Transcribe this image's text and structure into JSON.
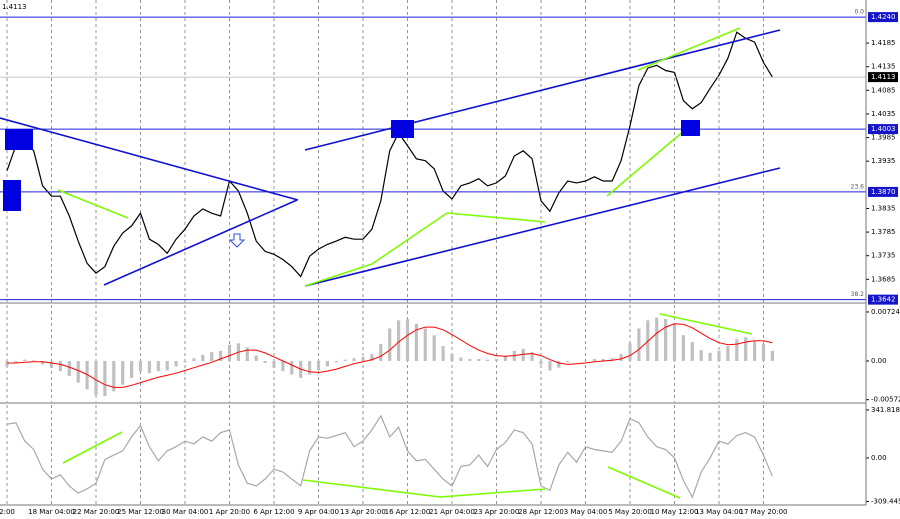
{
  "chart_data": [
    {
      "type": "line",
      "title": "1.4113",
      "color": "#000000",
      "grid": true,
      "categories": [
        "2:00",
        null,
        null,
        null,
        null,
        "18 Mar 04:00",
        null,
        null,
        null,
        null,
        "22 Mar 20:00",
        null,
        null,
        null,
        null,
        "25 Mar 12:00",
        null,
        null,
        null,
        null,
        "30 Mar 04:00",
        null,
        null,
        null,
        null,
        "1 Apr 20:00",
        null,
        null,
        null,
        null,
        "6 Apr 12:00",
        null,
        null,
        null,
        null,
        "9 Apr 04:00",
        null,
        null,
        null,
        null,
        "13 Apr 20:00",
        null,
        null,
        null,
        null,
        "16 Apr 12:00",
        null,
        null,
        null,
        null,
        "21 Apr 04:00",
        null,
        null,
        null,
        null,
        "23 Apr 20:00",
        null,
        null,
        null,
        null,
        "28 Apr 12:00",
        null,
        null,
        null,
        null,
        "3 May 04:00",
        null,
        null,
        null,
        null,
        "5 May 20:00",
        null,
        null,
        null,
        null,
        "10 May 12:00",
        null,
        null,
        null,
        null,
        "13 May 04:00",
        null,
        null,
        null,
        null,
        "17 May 20:00",
        null
      ],
      "values": [
        1.3915,
        1.3968,
        1.3978,
        1.3957,
        1.3883,
        1.3861,
        1.3861,
        1.3819,
        1.3766,
        1.3719,
        1.3698,
        1.3712,
        1.3755,
        1.3783,
        1.3798,
        1.3825,
        1.377,
        1.3759,
        1.374,
        1.377,
        1.3791,
        1.3819,
        1.3834,
        1.3825,
        1.3819,
        1.3893,
        1.3872,
        1.3825,
        1.3766,
        1.3744,
        1.3738,
        1.3727,
        1.3712,
        1.3691,
        1.3734,
        1.3749,
        1.3759,
        1.3766,
        1.3774,
        1.377,
        1.377,
        1.3791,
        1.3851,
        1.3957,
        1.3995,
        1.3968,
        1.394,
        1.3936,
        1.3919,
        1.3872,
        1.3855,
        1.3883,
        1.3889,
        1.3898,
        1.3883,
        1.3889,
        1.3904,
        1.3946,
        1.3957,
        1.394,
        1.3851,
        1.3829,
        1.3868,
        1.3893,
        1.3889,
        1.3893,
        1.3902,
        1.3893,
        1.3893,
        1.3936,
        1.401,
        1.4095,
        1.4132,
        1.4138,
        1.4127,
        1.4123,
        1.4063,
        1.4046,
        1.4059,
        1.4089,
        1.4117,
        1.4153,
        1.4208,
        1.4195,
        1.4187,
        1.4144,
        1.4113
      ],
      "ylim": [
        1.3637,
        1.42762
      ],
      "yticks": [
        1.4185,
        1.4135,
        1.4085,
        1.4035,
        1.3985,
        1.3935,
        1.3835,
        1.3785,
        1.3735,
        1.3685
      ],
      "hlines": [
        {
          "price": {
            "value": 1.424,
            "label": "1.4240"
          },
          "fib": "0.0"
        },
        {
          "price": 1.4003
        },
        {
          "price": {
            "value": 1.387,
            "label": "1.3870"
          },
          "fib": "23.6"
        },
        {
          "price": 1.3642,
          "fib": "38.2"
        }
      ],
      "last_price": 1.4113
    },
    {
      "type": "macd",
      "series": [
        {
          "color": "#c0c0c0",
          "style": "histogram",
          "values": [
            -0.0008,
            -0.0002,
            0.0002,
            0.0001,
            -0.0005,
            -0.001,
            -0.0015,
            -0.0022,
            -0.0032,
            -0.0042,
            -0.005,
            -0.0052,
            -0.0045,
            -0.0035,
            -0.0025,
            -0.0015,
            -0.0018,
            -0.0015,
            -0.0014,
            -0.0008,
            -0.0002,
            0.0004,
            0.0009,
            0.0013,
            0.0015,
            0.0024,
            0.0026,
            0.002,
            0.0008,
            -0.0003,
            -0.001,
            -0.0015,
            -0.002,
            -0.0025,
            -0.002,
            -0.0014,
            -0.0008,
            -0.0002,
            0.0002,
            0.0004,
            0.0006,
            0.001,
            0.0025,
            0.0048,
            0.006,
            0.0062,
            0.0055,
            0.0048,
            0.0038,
            0.0022,
            0.001,
            0.0005,
            0.0003,
            0.0003,
            0.0002,
            0.0003,
            0.0007,
            0.0015,
            0.0018,
            0.0013,
            -0.0005,
            -0.0014,
            -0.001,
            -0.0002,
            0,
            0.0001,
            0.0003,
            0.0003,
            0.0004,
            0.001,
            0.0026,
            0.0048,
            0.006,
            0.0064,
            0.0062,
            0.0055,
            0.0038,
            0.0028,
            0.0016,
            0.0012,
            0.0015,
            0.0022,
            0.0032,
            0.0035,
            0.003,
            0.0025,
            0.0015
          ]
        },
        {
          "color": "#ff0000",
          "style": "line",
          "values": [
            -0.0003,
            -0.0003,
            -0.0002,
            -0.0001,
            -0.0001,
            -0.0003,
            -0.0005,
            -0.0009,
            -0.0014,
            -0.002,
            -0.0028,
            -0.0035,
            -0.0039,
            -0.0039,
            -0.0036,
            -0.0032,
            -0.0028,
            -0.0024,
            -0.0021,
            -0.0018,
            -0.0014,
            -0.001,
            -0.0006,
            -0.0002,
            0.0003,
            0.0008,
            0.0013,
            0.0016,
            0.0016,
            0.0012,
            0.0006,
            0,
            -0.0006,
            -0.0012,
            -0.0016,
            -0.0017,
            -0.0015,
            -0.0012,
            -0.0008,
            -0.0004,
            -0.0001,
            0.0002,
            0.0007,
            0.0016,
            0.0028,
            0.0038,
            0.0046,
            0.005,
            0.005,
            0.0046,
            0.0039,
            0.0031,
            0.0023,
            0.0016,
            0.0011,
            0.0008,
            0.0007,
            0.0008,
            0.001,
            0.0011,
            0.0008,
            0.0002,
            -0.0003,
            -0.0005,
            -0.0004,
            -0.0003,
            -0.0001,
            0,
            0.0001,
            0.0003,
            0.0008,
            0.0017,
            0.0029,
            0.0041,
            0.005,
            0.0055,
            0.0054,
            0.0049,
            0.0041,
            0.0033,
            0.0027,
            0.0024,
            0.0025,
            0.0028,
            0.003,
            0.003,
            0.0027
          ]
        }
      ],
      "ylim": [
        -0.00606,
        0.00827
      ],
      "yticks": [
        0.00724,
        {
          "value": 0,
          "label": "0.00"
        },
        -0.00572
      ]
    },
    {
      "type": "line",
      "color": "#a8a8a8",
      "values": [
        240,
        250,
        120,
        60,
        -80,
        -150,
        -120,
        -200,
        -250,
        -220,
        -180,
        -10,
        20,
        50,
        150,
        230,
        80,
        -20,
        50,
        80,
        120,
        100,
        150,
        120,
        180,
        200,
        -50,
        -180,
        -200,
        -150,
        -80,
        -100,
        -150,
        -200,
        50,
        150,
        140,
        160,
        180,
        80,
        120,
        200,
        300,
        150,
        220,
        50,
        -20,
        -10,
        -80,
        -150,
        -200,
        -60,
        -50,
        20,
        -60,
        60,
        110,
        200,
        180,
        100,
        -200,
        -230,
        -50,
        40,
        -30,
        80,
        60,
        50,
        40,
        120,
        280,
        250,
        150,
        80,
        60,
        0,
        -160,
        -280,
        -100,
        0,
        120,
        100,
        160,
        180,
        150,
        20,
        -130
      ],
      "ylim": [
        -335,
        377
      ],
      "yticks": [
        341.8182,
        {
          "value": 0,
          "label": "0.00"
        },
        -309.4455
      ]
    }
  ]
}
